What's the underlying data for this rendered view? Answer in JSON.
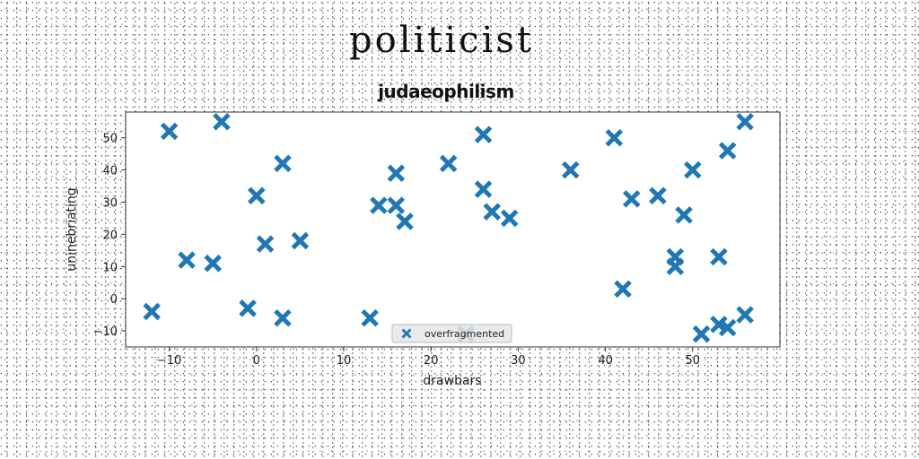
{
  "page_title": "politicist",
  "chart_data": {
    "type": "scatter",
    "title": "judaeophilism",
    "xlabel": "drawbars",
    "ylabel": "uninebriating",
    "xlim": [
      -15,
      60
    ],
    "ylim": [
      -15,
      58
    ],
    "xticks": [
      -10,
      0,
      10,
      20,
      30,
      40,
      50
    ],
    "yticks": [
      -10,
      0,
      10,
      20,
      30,
      40,
      50
    ],
    "grid": false,
    "legend_position": "bottom-center",
    "series": [
      {
        "name": "overfragmented",
        "color": "#1f77b4",
        "marker": "X",
        "points": [
          [
            -12,
            -4
          ],
          [
            -10,
            52
          ],
          [
            -8,
            12
          ],
          [
            -5,
            11
          ],
          [
            -4,
            55
          ],
          [
            -1,
            -3
          ],
          [
            0,
            32
          ],
          [
            1,
            17
          ],
          [
            3,
            42
          ],
          [
            3,
            -6
          ],
          [
            5,
            18
          ],
          [
            13,
            -6
          ],
          [
            14,
            29
          ],
          [
            16,
            29
          ],
          [
            16,
            39
          ],
          [
            17,
            24
          ],
          [
            22,
            42
          ],
          [
            24,
            -11
          ],
          [
            26,
            51
          ],
          [
            26,
            34
          ],
          [
            27,
            27
          ],
          [
            29,
            25
          ],
          [
            36,
            40
          ],
          [
            41,
            50
          ],
          [
            42,
            3
          ],
          [
            43,
            31
          ],
          [
            46,
            32
          ],
          [
            48,
            13
          ],
          [
            48,
            10
          ],
          [
            49,
            26
          ],
          [
            50,
            40
          ],
          [
            51,
            -11
          ],
          [
            53,
            13
          ],
          [
            53,
            -8
          ],
          [
            54,
            46
          ],
          [
            54,
            -9
          ],
          [
            56,
            55
          ],
          [
            56,
            -5
          ]
        ]
      }
    ]
  }
}
